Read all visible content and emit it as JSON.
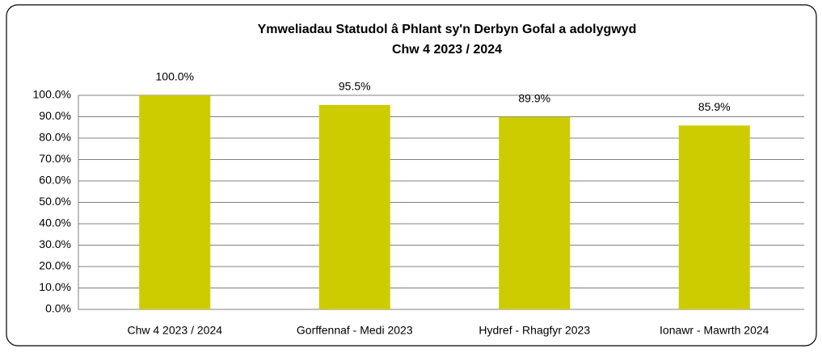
{
  "chart_data": {
    "type": "bar",
    "title": "Ymweliadau Statudol â Phlant sy'n Derbyn Gofal a adolygwyd",
    "subtitle": "Chw  4 2023 / 2024",
    "categories": [
      "Chw  4 2023 / 2024",
      "Gorffennaf - Medi 2023",
      "Hydref - Rhagfyr 2023",
      "Ionawr - Mawrth 2024"
    ],
    "values": [
      100,
      95.5,
      89.9,
      85.9
    ],
    "value_labels": [
      "100.0%",
      "95.5%",
      "89.9%",
      "85.9%"
    ],
    "color": "#cccc00",
    "ylim": [
      0,
      100
    ],
    "yticks": [
      {
        "value": 0,
        "label": "0.0%"
      },
      {
        "value": 10,
        "label": "10.0%"
      },
      {
        "value": 20,
        "label": "20.0%"
      },
      {
        "value": 30,
        "label": "30.0%"
      },
      {
        "value": 40,
        "label": "40.0%"
      },
      {
        "value": 50,
        "label": "50.0%"
      },
      {
        "value": 60,
        "label": "60.0%"
      },
      {
        "value": 70,
        "label": "70.0%"
      },
      {
        "value": 80,
        "label": "80.0%"
      },
      {
        "value": 90,
        "label": "90.0%"
      },
      {
        "value": 100,
        "label": "100.0%"
      }
    ],
    "grid": true
  }
}
